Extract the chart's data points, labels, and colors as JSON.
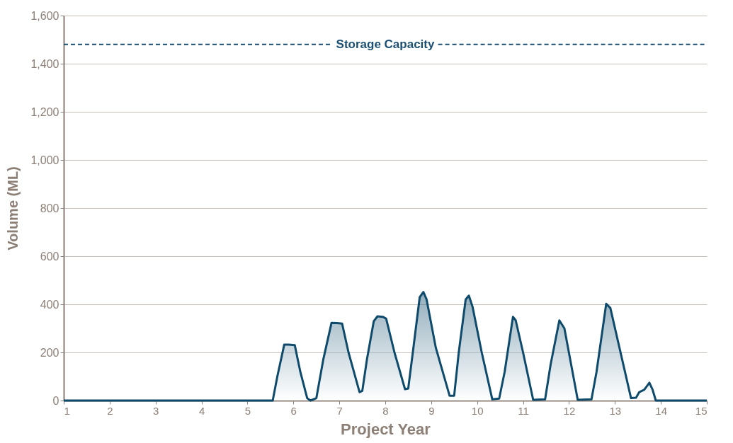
{
  "chart_data": {
    "type": "area",
    "xlabel": "Project Year",
    "ylabel": "Volume (ML)",
    "xlim": [
      1,
      15
    ],
    "xticks": [
      1,
      2,
      3,
      4,
      5,
      6,
      7,
      8,
      9,
      10,
      11,
      12,
      13,
      14,
      15
    ],
    "ylim": [
      0,
      1600
    ],
    "yticks": [
      0,
      200,
      400,
      600,
      800,
      {
        "value": 1000,
        "label": "1,000"
      },
      {
        "value": 1200,
        "label": "1,200"
      },
      {
        "value": 1400,
        "label": "1,400"
      },
      {
        "value": 1600,
        "label": "1,600"
      }
    ],
    "grid": "y",
    "ref_lines": [
      {
        "axis": "y",
        "value": 1480,
        "label": "Storage Capacity",
        "color": "#1b4f72",
        "line_style": "dashed"
      }
    ],
    "series": [
      {
        "color": "#0e4a6b",
        "x": [
          1,
          5.55,
          5.65,
          5.8,
          5.9,
          6.03,
          6.15,
          6.3,
          6.37,
          6.5,
          6.65,
          6.83,
          6.95,
          7.06,
          7.2,
          7.44,
          7.5,
          7.6,
          7.75,
          7.83,
          7.95,
          8.02,
          8.2,
          8.43,
          8.5,
          8.6,
          8.75,
          8.83,
          8.9,
          9.1,
          9.4,
          9.5,
          9.6,
          9.75,
          9.82,
          9.9,
          10.1,
          10.33,
          10.48,
          10.6,
          10.78,
          10.84,
          11.0,
          11.22,
          11.48,
          11.6,
          11.79,
          11.9,
          12.19,
          12.49,
          12.6,
          12.81,
          12.9,
          13.35,
          13.46,
          13.53,
          13.64,
          13.75,
          13.82,
          13.89,
          15
        ],
        "values": [
          0,
          0,
          100,
          232,
          232,
          230,
          120,
          10,
          0,
          10,
          170,
          323,
          322,
          320,
          200,
          35,
          40,
          170,
          330,
          350,
          348,
          340,
          200,
          47,
          50,
          200,
          430,
          451,
          420,
          220,
          20,
          20,
          200,
          420,
          436,
          390,
          200,
          5,
          8,
          120,
          348,
          333,
          200,
          3,
          5,
          150,
          333,
          300,
          3,
          5,
          120,
          402,
          385,
          10,
          12,
          35,
          45,
          74,
          45,
          0,
          0
        ]
      }
    ]
  }
}
